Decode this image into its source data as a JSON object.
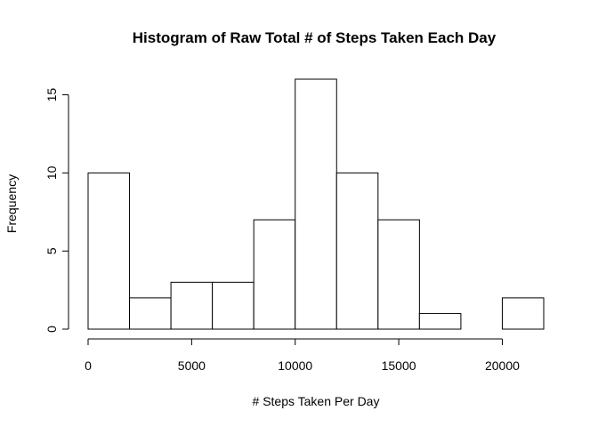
{
  "chart_data": {
    "type": "bar",
    "title": "Histogram of Raw Total # of Steps Taken Each Day",
    "xlabel": "# Steps Taken Per Day",
    "ylabel": "Frequency",
    "bin_edges": [
      0,
      2000,
      4000,
      6000,
      8000,
      10000,
      12000,
      14000,
      16000,
      18000,
      20000,
      22000
    ],
    "values": [
      10,
      2,
      3,
      3,
      7,
      16,
      10,
      7,
      1,
      0,
      2
    ],
    "xlim": [
      0,
      22000
    ],
    "ylim": [
      0,
      16
    ],
    "x_ticks": [
      0,
      5000,
      10000,
      15000,
      20000
    ],
    "x_tick_labels": [
      "0",
      "5000",
      "10000",
      "15000",
      "20000"
    ],
    "y_ticks": [
      0,
      5,
      10,
      15
    ],
    "y_tick_labels": [
      "0",
      "5",
      "10",
      "15"
    ],
    "grid": false,
    "bar_fill": "#ffffff",
    "bar_stroke": "#000000"
  }
}
